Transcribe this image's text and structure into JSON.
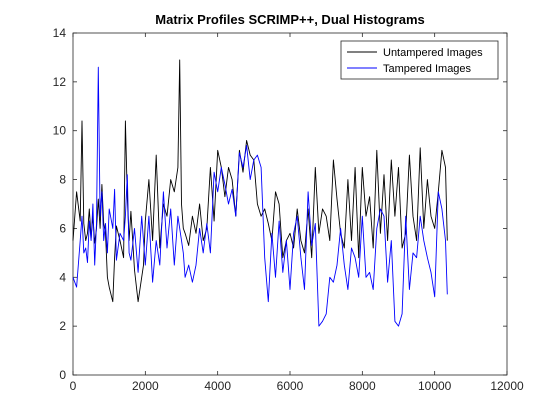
{
  "chart_data": {
    "type": "line",
    "title": "Matrix Profiles SCRIMP++, Dual Histograms",
    "xlabel": "",
    "ylabel": "",
    "xlim": [
      0,
      12000
    ],
    "ylim": [
      0,
      14
    ],
    "xticks": [
      0,
      2000,
      4000,
      6000,
      8000,
      10000,
      12000
    ],
    "yticks": [
      0,
      2,
      4,
      6,
      8,
      10,
      12,
      14
    ],
    "xtick_labels": [
      "0",
      "2000",
      "4000",
      "6000",
      "8000",
      "10000",
      "12000"
    ],
    "ytick_labels": [
      "0",
      "2",
      "4",
      "6",
      "8",
      "10",
      "12",
      "14"
    ],
    "grid": false,
    "legend_position": "top-right",
    "series": [
      {
        "name": "Untampered Images",
        "color": "#000000",
        "x": [
          0,
          100,
          200,
          250,
          300,
          350,
          400,
          450,
          500,
          550,
          600,
          650,
          700,
          750,
          800,
          850,
          900,
          950,
          1000,
          1100,
          1150,
          1200,
          1300,
          1400,
          1450,
          1500,
          1550,
          1600,
          1700,
          1800,
          1900,
          1950,
          2000,
          2100,
          2200,
          2300,
          2400,
          2500,
          2600,
          2700,
          2800,
          2900,
          2950,
          3000,
          3050,
          3100,
          3200,
          3300,
          3400,
          3500,
          3600,
          3700,
          3800,
          3900,
          4000,
          4100,
          4200,
          4300,
          4400,
          4500,
          4600,
          4700,
          4800,
          4900,
          5000,
          5100,
          5200,
          5300,
          5400,
          5500,
          5600,
          5700,
          5800,
          5900,
          6000,
          6100,
          6200,
          6300,
          6400,
          6500,
          6600,
          6700,
          6800,
          6900,
          7000,
          7100,
          7200,
          7300,
          7400,
          7500,
          7600,
          7700,
          7800,
          7900,
          8000,
          8100,
          8200,
          8300,
          8400,
          8500,
          8600,
          8700,
          8800,
          8900,
          9000,
          9100,
          9200,
          9300,
          9400,
          9500,
          9600,
          9700,
          9800,
          9900,
          10000,
          10100,
          10200,
          10300,
          10350
        ],
        "values": [
          5.5,
          7.5,
          6.3,
          10.4,
          6.2,
          5.5,
          5.8,
          6.8,
          5.6,
          6.5,
          5.4,
          6.0,
          7.2,
          6.0,
          7.8,
          6.2,
          5.8,
          4.0,
          3.6,
          3.0,
          4.8,
          6.1,
          5.5,
          4.8,
          10.4,
          7.3,
          5.5,
          6.7,
          4.3,
          3.0,
          4.0,
          4.5,
          6.3,
          8.0,
          5.5,
          9.0,
          5.2,
          7.0,
          6.5,
          8.0,
          7.5,
          8.5,
          12.9,
          7.0,
          6.0,
          5.8,
          5.3,
          6.5,
          5.8,
          7.0,
          5.5,
          6.0,
          8.5,
          6.3,
          9.2,
          8.5,
          7.3,
          8.5,
          8.0,
          6.5,
          9.2,
          8.3,
          9.6,
          9.0,
          8.8,
          7.0,
          6.5,
          6.8,
          6.2,
          5.5,
          7.5,
          7.0,
          4.8,
          5.5,
          5.8,
          5.2,
          6.8,
          5.5,
          5.0,
          6.8,
          4.8,
          8.5,
          5.8,
          6.8,
          6.5,
          5.5,
          8.8,
          7.2,
          5.8,
          5.2,
          8.0,
          5.5,
          8.5,
          4.8,
          8.5,
          6.5,
          7.3,
          5.2,
          9.2,
          5.8,
          8.2,
          5.5,
          8.8,
          6.5,
          8.5,
          5.2,
          5.8,
          9.0,
          6.5,
          5.5,
          9.3,
          6.0,
          8.0,
          6.5,
          6.0,
          7.5,
          9.2,
          8.5,
          5.5
        ],
        "note_missing": null
      },
      {
        "name": "Tampered Images",
        "color": "#0000ff",
        "x": [
          0,
          100,
          200,
          250,
          300,
          350,
          400,
          450,
          500,
          550,
          600,
          650,
          700,
          750,
          800,
          850,
          900,
          950,
          1000,
          1100,
          1150,
          1200,
          1300,
          1400,
          1450,
          1500,
          1550,
          1600,
          1700,
          1800,
          1900,
          1950,
          2000,
          2100,
          2200,
          2300,
          2400,
          2500,
          2600,
          2700,
          2800,
          2900,
          2950,
          3000,
          3050,
          3100,
          3200,
          3300,
          3400,
          3500,
          3600,
          3700,
          3800,
          3900,
          4000,
          4100,
          4200,
          4300,
          4400,
          4500,
          4600,
          4700,
          4800,
          4900,
          5000,
          5100,
          5200,
          5300,
          5400,
          5500,
          5600,
          5700,
          5800,
          5900,
          6000,
          6100,
          6200,
          6300,
          6400,
          6500,
          6600,
          6700,
          6800,
          6900,
          7000,
          7100,
          7200,
          7300,
          7400,
          7500,
          7600,
          7700,
          7800,
          7900,
          8000,
          8100,
          8200,
          8300,
          8400,
          8500,
          8600,
          8700,
          8800,
          8900,
          9000,
          9100,
          9200,
          9300,
          9400,
          9500,
          9600,
          9700,
          9800,
          9900,
          10000,
          10100,
          10200,
          10300,
          10350
        ],
        "values": [
          4.0,
          3.6,
          5.5,
          6.5,
          5.0,
          5.2,
          4.6,
          6.3,
          5.5,
          7.0,
          4.5,
          6.2,
          12.6,
          6.5,
          7.5,
          5.5,
          6.2,
          5.0,
          6.8,
          6.0,
          7.6,
          4.7,
          5.8,
          5.5,
          6.5,
          8.2,
          5.0,
          4.7,
          6.0,
          4.2,
          6.5,
          5.5,
          4.5,
          6.5,
          3.8,
          5.5,
          4.5,
          7.5,
          5.2,
          6.8,
          4.5,
          6.5,
          6.0,
          5.5,
          5.0,
          4.0,
          4.5,
          3.8,
          4.5,
          6.0,
          5.0,
          6.2,
          5.0,
          8.3,
          7.5,
          8.5,
          7.8,
          7.0,
          7.6,
          6.5,
          9.1,
          8.5,
          9.4,
          8.0,
          8.8,
          9.0,
          8.5,
          4.8,
          3.0,
          5.8,
          4.0,
          6.3,
          4.2,
          5.5,
          3.5,
          5.8,
          6.5,
          4.8,
          3.5,
          7.5,
          5.3,
          6.2,
          2.0,
          2.2,
          2.5,
          4.0,
          3.8,
          4.5,
          6.0,
          4.5,
          3.5,
          5.2,
          4.8,
          4.0,
          6.5,
          4.0,
          4.2,
          3.5,
          6.0,
          6.8,
          6.5,
          3.8,
          5.5,
          2.2,
          2.0,
          2.5,
          6.5,
          3.5,
          5.0,
          4.8,
          6.5,
          5.5,
          4.8,
          4.2,
          3.2,
          7.5,
          6.8,
          5.5,
          3.3
        ],
        "note_missing": null
      }
    ]
  }
}
